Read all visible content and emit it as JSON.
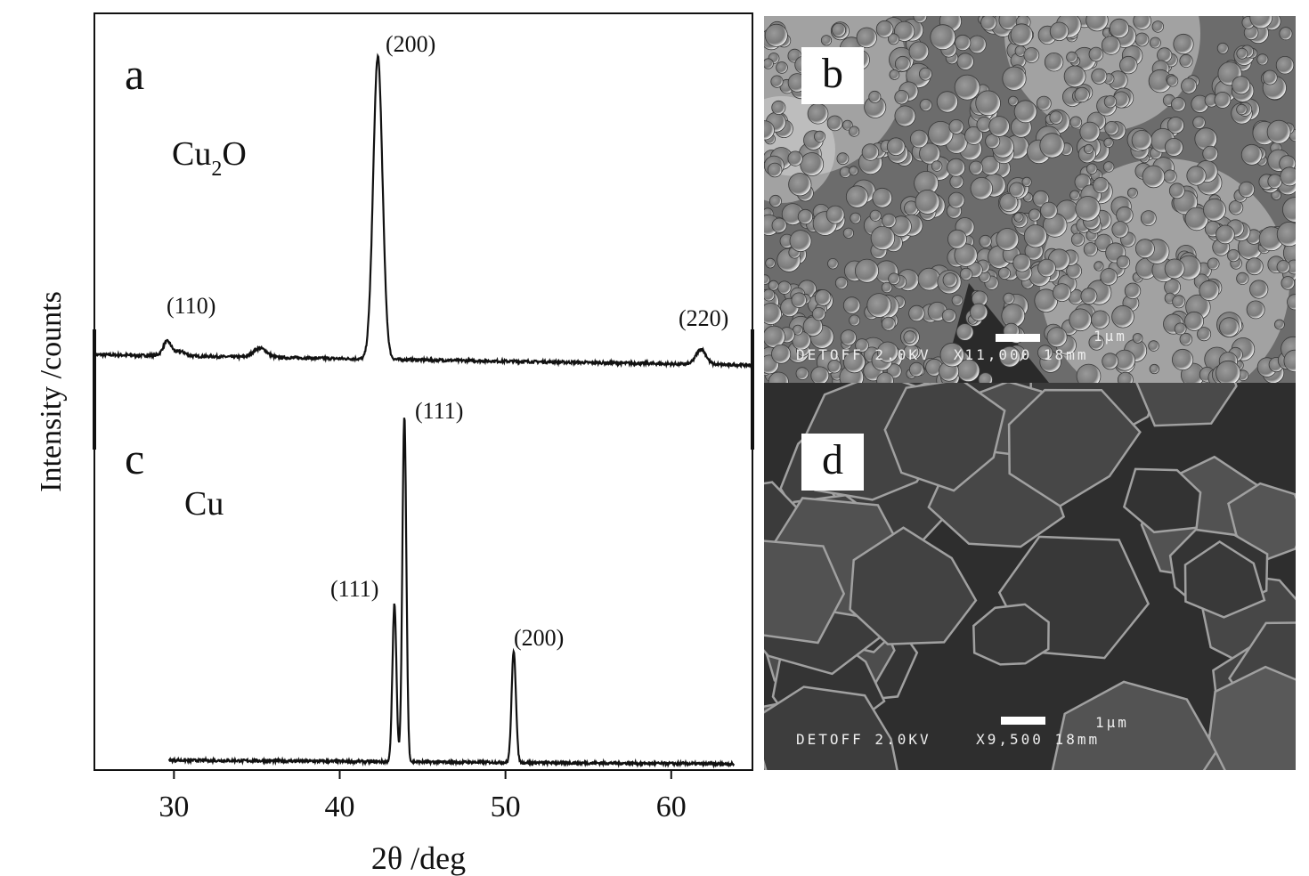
{
  "chart_data": {
    "type": "line",
    "xlabel": "2θ /deg",
    "ylabel": "Intensity /counts",
    "xlim": [
      25.2,
      64.9
    ],
    "ylim": [
      0,
      100
    ],
    "xticks": [
      30,
      40,
      50,
      60
    ],
    "yticks": [],
    "grid": false,
    "series": [
      {
        "panel": "a",
        "name": "Cu2O",
        "x_range": [
          25.2,
          64.9
        ],
        "baseline_start": 54.9,
        "baseline_end": 53.5,
        "peaks": [
          {
            "x": 29.6,
            "height": 1.9,
            "width": 0.25,
            "label": "(110)"
          },
          {
            "x": 30.4,
            "height": 0.6,
            "width": 0.3,
            "label": ""
          },
          {
            "x": 35.2,
            "height": 1.2,
            "width": 0.4,
            "label": ""
          },
          {
            "x": 42.3,
            "height": 40.0,
            "width": 0.28,
            "label": "(200)"
          },
          {
            "x": 61.8,
            "height": 2.0,
            "width": 0.3,
            "label": "(220)"
          }
        ]
      },
      {
        "panel": "c",
        "name": "Cu",
        "x_range": [
          29.7,
          63.8
        ],
        "baseline_start": 1.3,
        "baseline_end": 0.8,
        "peaks": [
          {
            "x": 43.3,
            "height": 20.8,
            "width": 0.12,
            "label": "(111)"
          },
          {
            "x": 43.9,
            "height": 45.6,
            "width": 0.12,
            "label": "(111)"
          },
          {
            "x": 50.5,
            "height": 14.8,
            "width": 0.13,
            "label": "(200)"
          }
        ]
      }
    ],
    "annotations": {
      "panel_a": "a",
      "panel_c": "c",
      "cu2o_main": "Cu",
      "cu2o_sub": "2",
      "cu2o_tail": "O",
      "cu": "Cu",
      "a_110": "(110)",
      "a_200": "(200)",
      "a_220": "(220)",
      "c_111_left": "(111)",
      "c_111_right": "(111)",
      "c_200": "(200)"
    }
  },
  "images": {
    "b": {
      "label": "b",
      "scale_label": "1µm",
      "info": "DETOFF 2.0KV  X11,000 18mm"
    },
    "d": {
      "label": "d",
      "scale_label": "1µm",
      "info": "DETOFF 2.0KV    X9,500 18mm"
    }
  }
}
